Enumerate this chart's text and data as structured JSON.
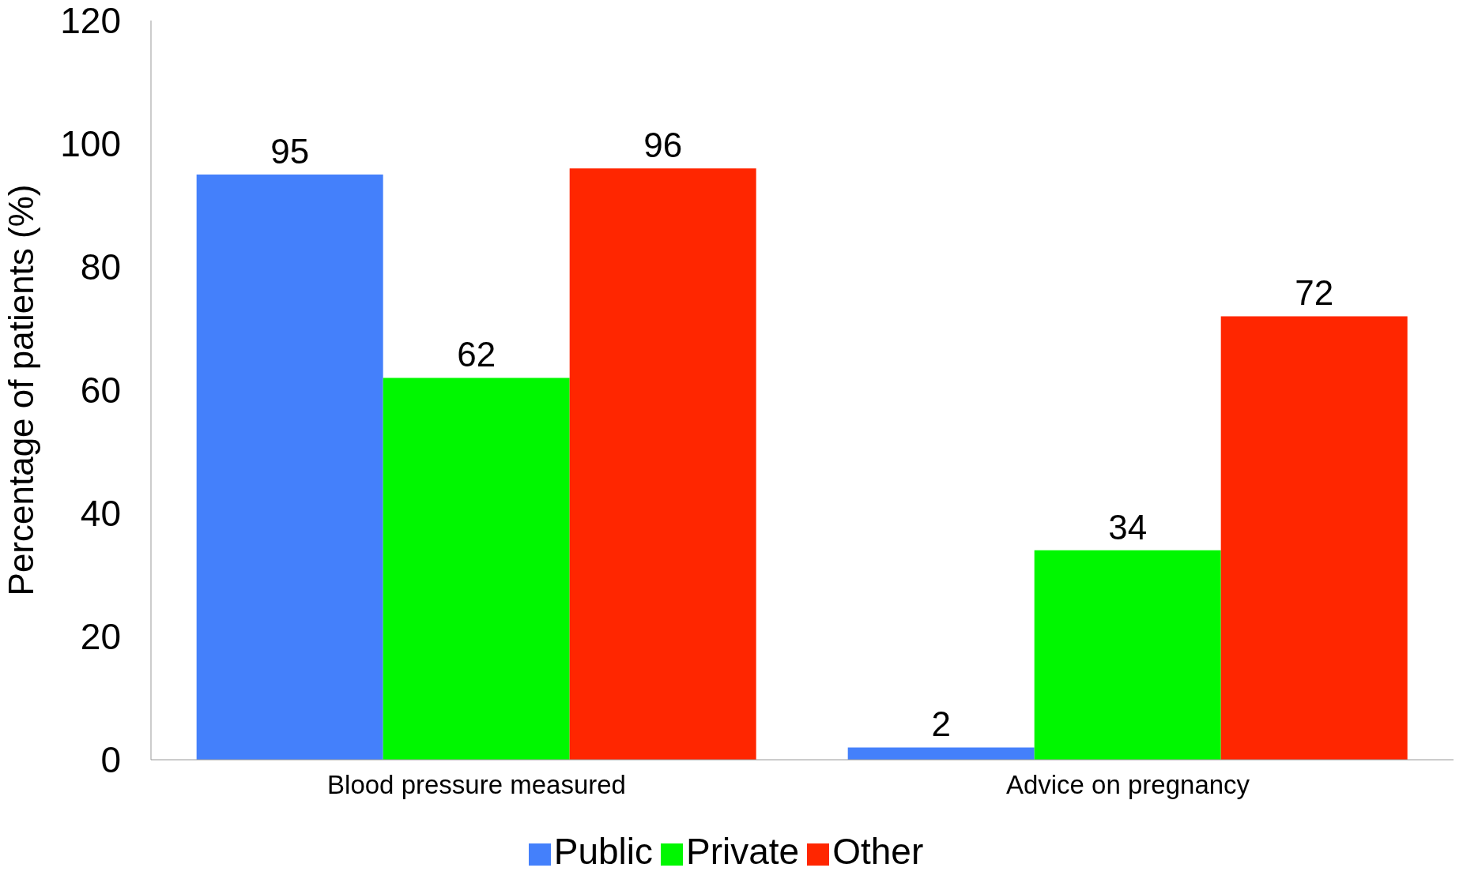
{
  "chart_data": {
    "type": "bar",
    "ylabel": "Percentage of patients (%)",
    "categories": [
      "Blood pressure measured",
      "Advice on pregnancy"
    ],
    "series": [
      {
        "name": "Public",
        "color": "#4480fb",
        "values": [
          95,
          2
        ]
      },
      {
        "name": "Private",
        "color": "#00f700",
        "values": [
          62,
          34
        ]
      },
      {
        "name": "Other",
        "color": "#ff2600",
        "values": [
          96,
          72
        ]
      }
    ],
    "ylim": [
      0,
      120
    ],
    "yticks": [
      0,
      20,
      40,
      60,
      80,
      100,
      120
    ],
    "legend": "bottom",
    "data_labels": true
  }
}
